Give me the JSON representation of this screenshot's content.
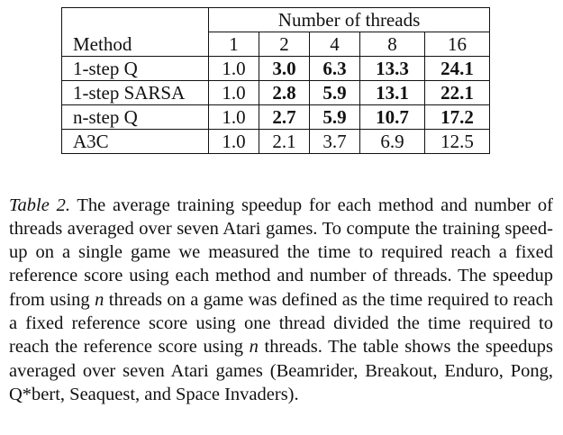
{
  "table": {
    "group_header": "Number of threads",
    "method_header": "Method",
    "thread_counts": [
      "1",
      "2",
      "4",
      "8",
      "16"
    ],
    "rows": [
      {
        "method": "1-step Q",
        "values": [
          "1.0",
          "3.0",
          "6.3",
          "13.3",
          "24.1"
        ],
        "bold": [
          false,
          true,
          true,
          true,
          true
        ]
      },
      {
        "method": "1-step SARSA",
        "values": [
          "1.0",
          "2.8",
          "5.9",
          "13.1",
          "22.1"
        ],
        "bold": [
          false,
          true,
          true,
          true,
          true
        ]
      },
      {
        "method": "n-step Q",
        "values": [
          "1.0",
          "2.7",
          "5.9",
          "10.7",
          "17.2"
        ],
        "bold": [
          false,
          true,
          true,
          true,
          true
        ]
      },
      {
        "method": "A3C",
        "values": [
          "1.0",
          "2.1",
          "3.7",
          "6.9",
          "12.5"
        ],
        "bold": [
          false,
          false,
          false,
          false,
          false
        ]
      }
    ]
  },
  "caption": {
    "label": "Table 2.",
    "part1": " The average training speedup for each method and number of threads averaged over seven Atari games. To compute the training speed-up on a single game we measured the time to required reach a fixed reference score using each method and number of threads. The speedup from using ",
    "n1": "n",
    "part2": " threads on a game was defined as the time required to reach a fixed reference score using one thread divided the time required to reach the reference score using ",
    "n2": "n",
    "part3": " threads. The table shows the speedups averaged over seven Atari games (Beamrider, Breakout, Enduro, Pong, Q*bert, Seaquest, and Space Invaders)."
  }
}
